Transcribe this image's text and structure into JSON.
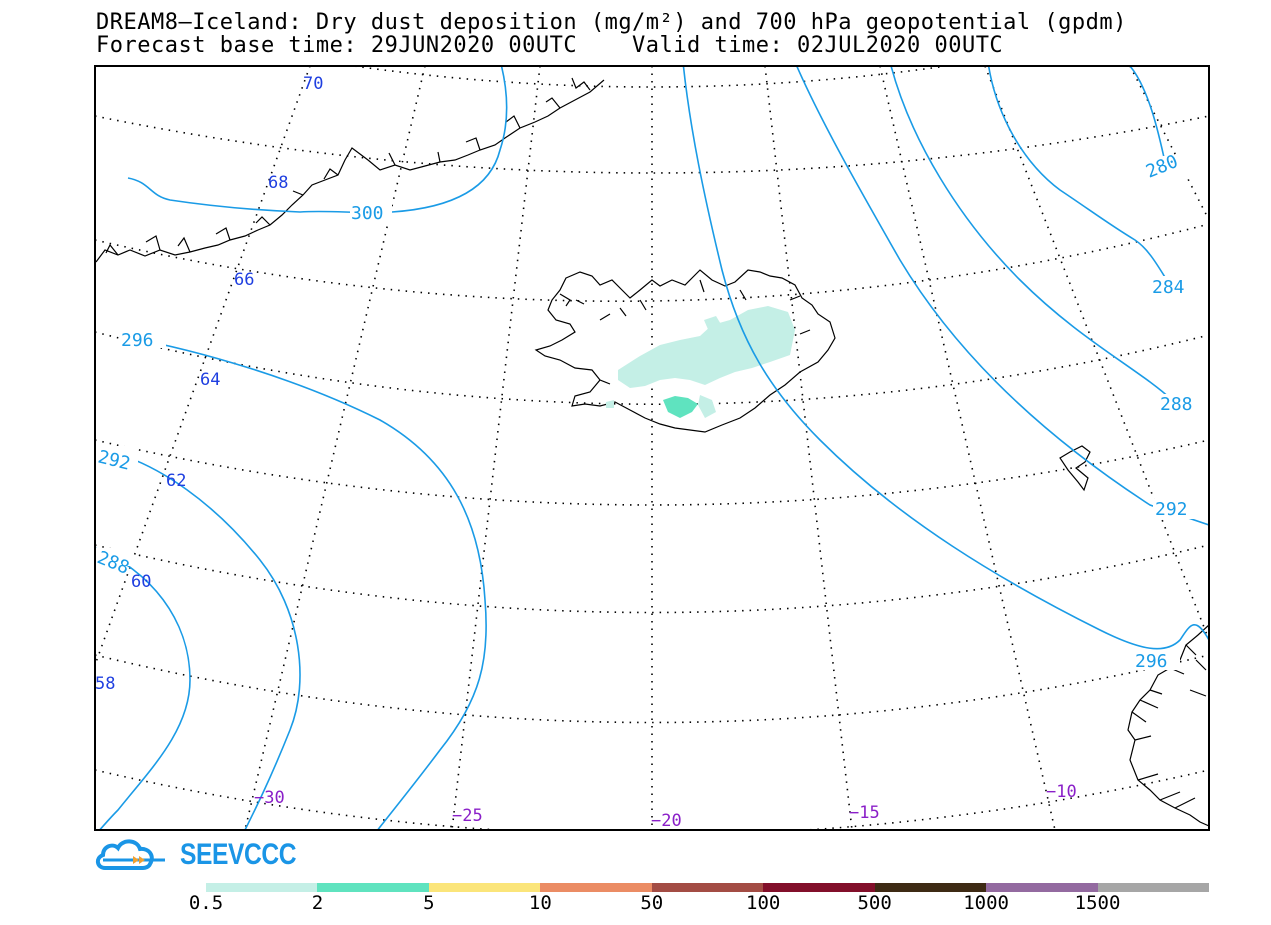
{
  "title_line1": "DREAM8—Iceland: Dry dust deposition (mg/m²) and 700 hPa geopotential (gpdm)",
  "title_line2": "Forecast base time: 29JUN2020 00UTC    Valid time: 02JUL2020 00UTC",
  "lat_labels": [
    "70",
    "68",
    "66",
    "64",
    "62",
    "60",
    "58"
  ],
  "lon_labels": [
    "−30",
    "−25",
    "−20",
    "−15",
    "−10"
  ],
  "contour_labels": [
    "300",
    "296",
    "292",
    "288",
    "280",
    "284",
    "288",
    "292",
    "296"
  ],
  "logo_text": "SEEVCCC",
  "colors": {
    "contour": "#1a9be6",
    "lat_label": "#1f3fe0",
    "lon_label": "#8a1fc8",
    "dust_light": "#c4efe6",
    "dust_mid": "#5fe3bf"
  },
  "legend": {
    "labels": [
      "0.5",
      "2",
      "5",
      "10",
      "50",
      "100",
      "500",
      "1000",
      "1500"
    ],
    "colors": [
      "#c4efe6",
      "#5fe3bf",
      "#fbe57a",
      "#eb8c64",
      "#a34c44",
      "#820f2a",
      "#3e2a14",
      "#936aa0",
      "#a6a6a6"
    ]
  }
}
